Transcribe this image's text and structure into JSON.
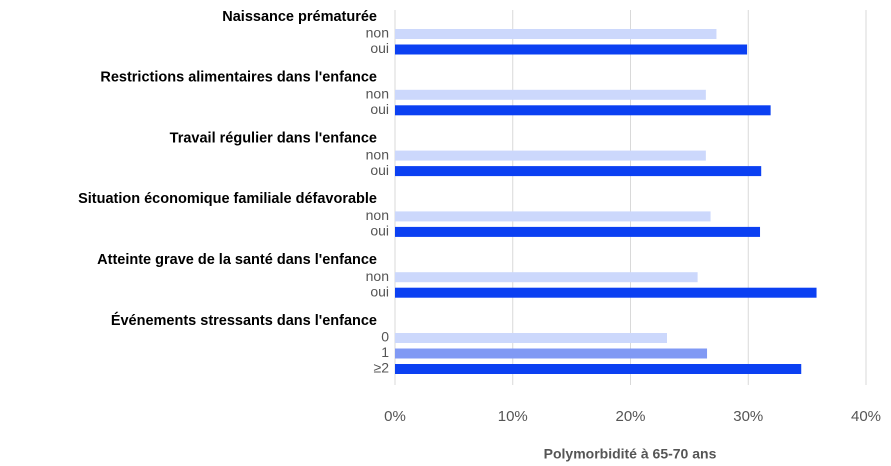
{
  "chart_data": {
    "type": "bar",
    "orientation": "horizontal",
    "xlabel": "Polymorbidité à 65-70 ans",
    "xlim": [
      0,
      40
    ],
    "xticks": [
      {
        "value": 0,
        "label": "0%"
      },
      {
        "value": 10,
        "label": "10%"
      },
      {
        "value": 20,
        "label": "20%"
      },
      {
        "value": 30,
        "label": "30%"
      },
      {
        "value": 40,
        "label": "40%"
      }
    ],
    "grid": true,
    "groups": [
      {
        "title": "Naissance prématurée",
        "categories": [
          "non",
          "oui"
        ],
        "values": [
          27.3,
          29.9
        ],
        "colors": [
          "#ccd8fc",
          "#0b40f2"
        ]
      },
      {
        "title": "Restrictions alimentaires dans l'enfance",
        "categories": [
          "non",
          "oui"
        ],
        "values": [
          26.4,
          31.9
        ],
        "colors": [
          "#ccd8fc",
          "#0b40f2"
        ]
      },
      {
        "title": "Travail régulier dans l'enfance",
        "categories": [
          "non",
          "oui"
        ],
        "values": [
          26.4,
          31.1
        ],
        "colors": [
          "#ccd8fc",
          "#0b40f2"
        ]
      },
      {
        "title": "Situation économique familiale défavorable",
        "categories": [
          "non",
          "oui"
        ],
        "values": [
          26.8,
          31.0
        ],
        "colors": [
          "#ccd8fc",
          "#0b40f2"
        ]
      },
      {
        "title": "Atteinte grave de la santé dans l'enfance",
        "categories": [
          "non",
          "oui"
        ],
        "values": [
          25.7,
          35.8
        ],
        "colors": [
          "#ccd8fc",
          "#0b40f2"
        ]
      },
      {
        "title": "Événements stressants dans l'enfance",
        "categories": [
          "0",
          "1",
          "≥2"
        ],
        "values": [
          23.1,
          26.5,
          34.5
        ],
        "colors": [
          "#ccd8fc",
          "#8099f4",
          "#0b40f2"
        ]
      }
    ]
  }
}
